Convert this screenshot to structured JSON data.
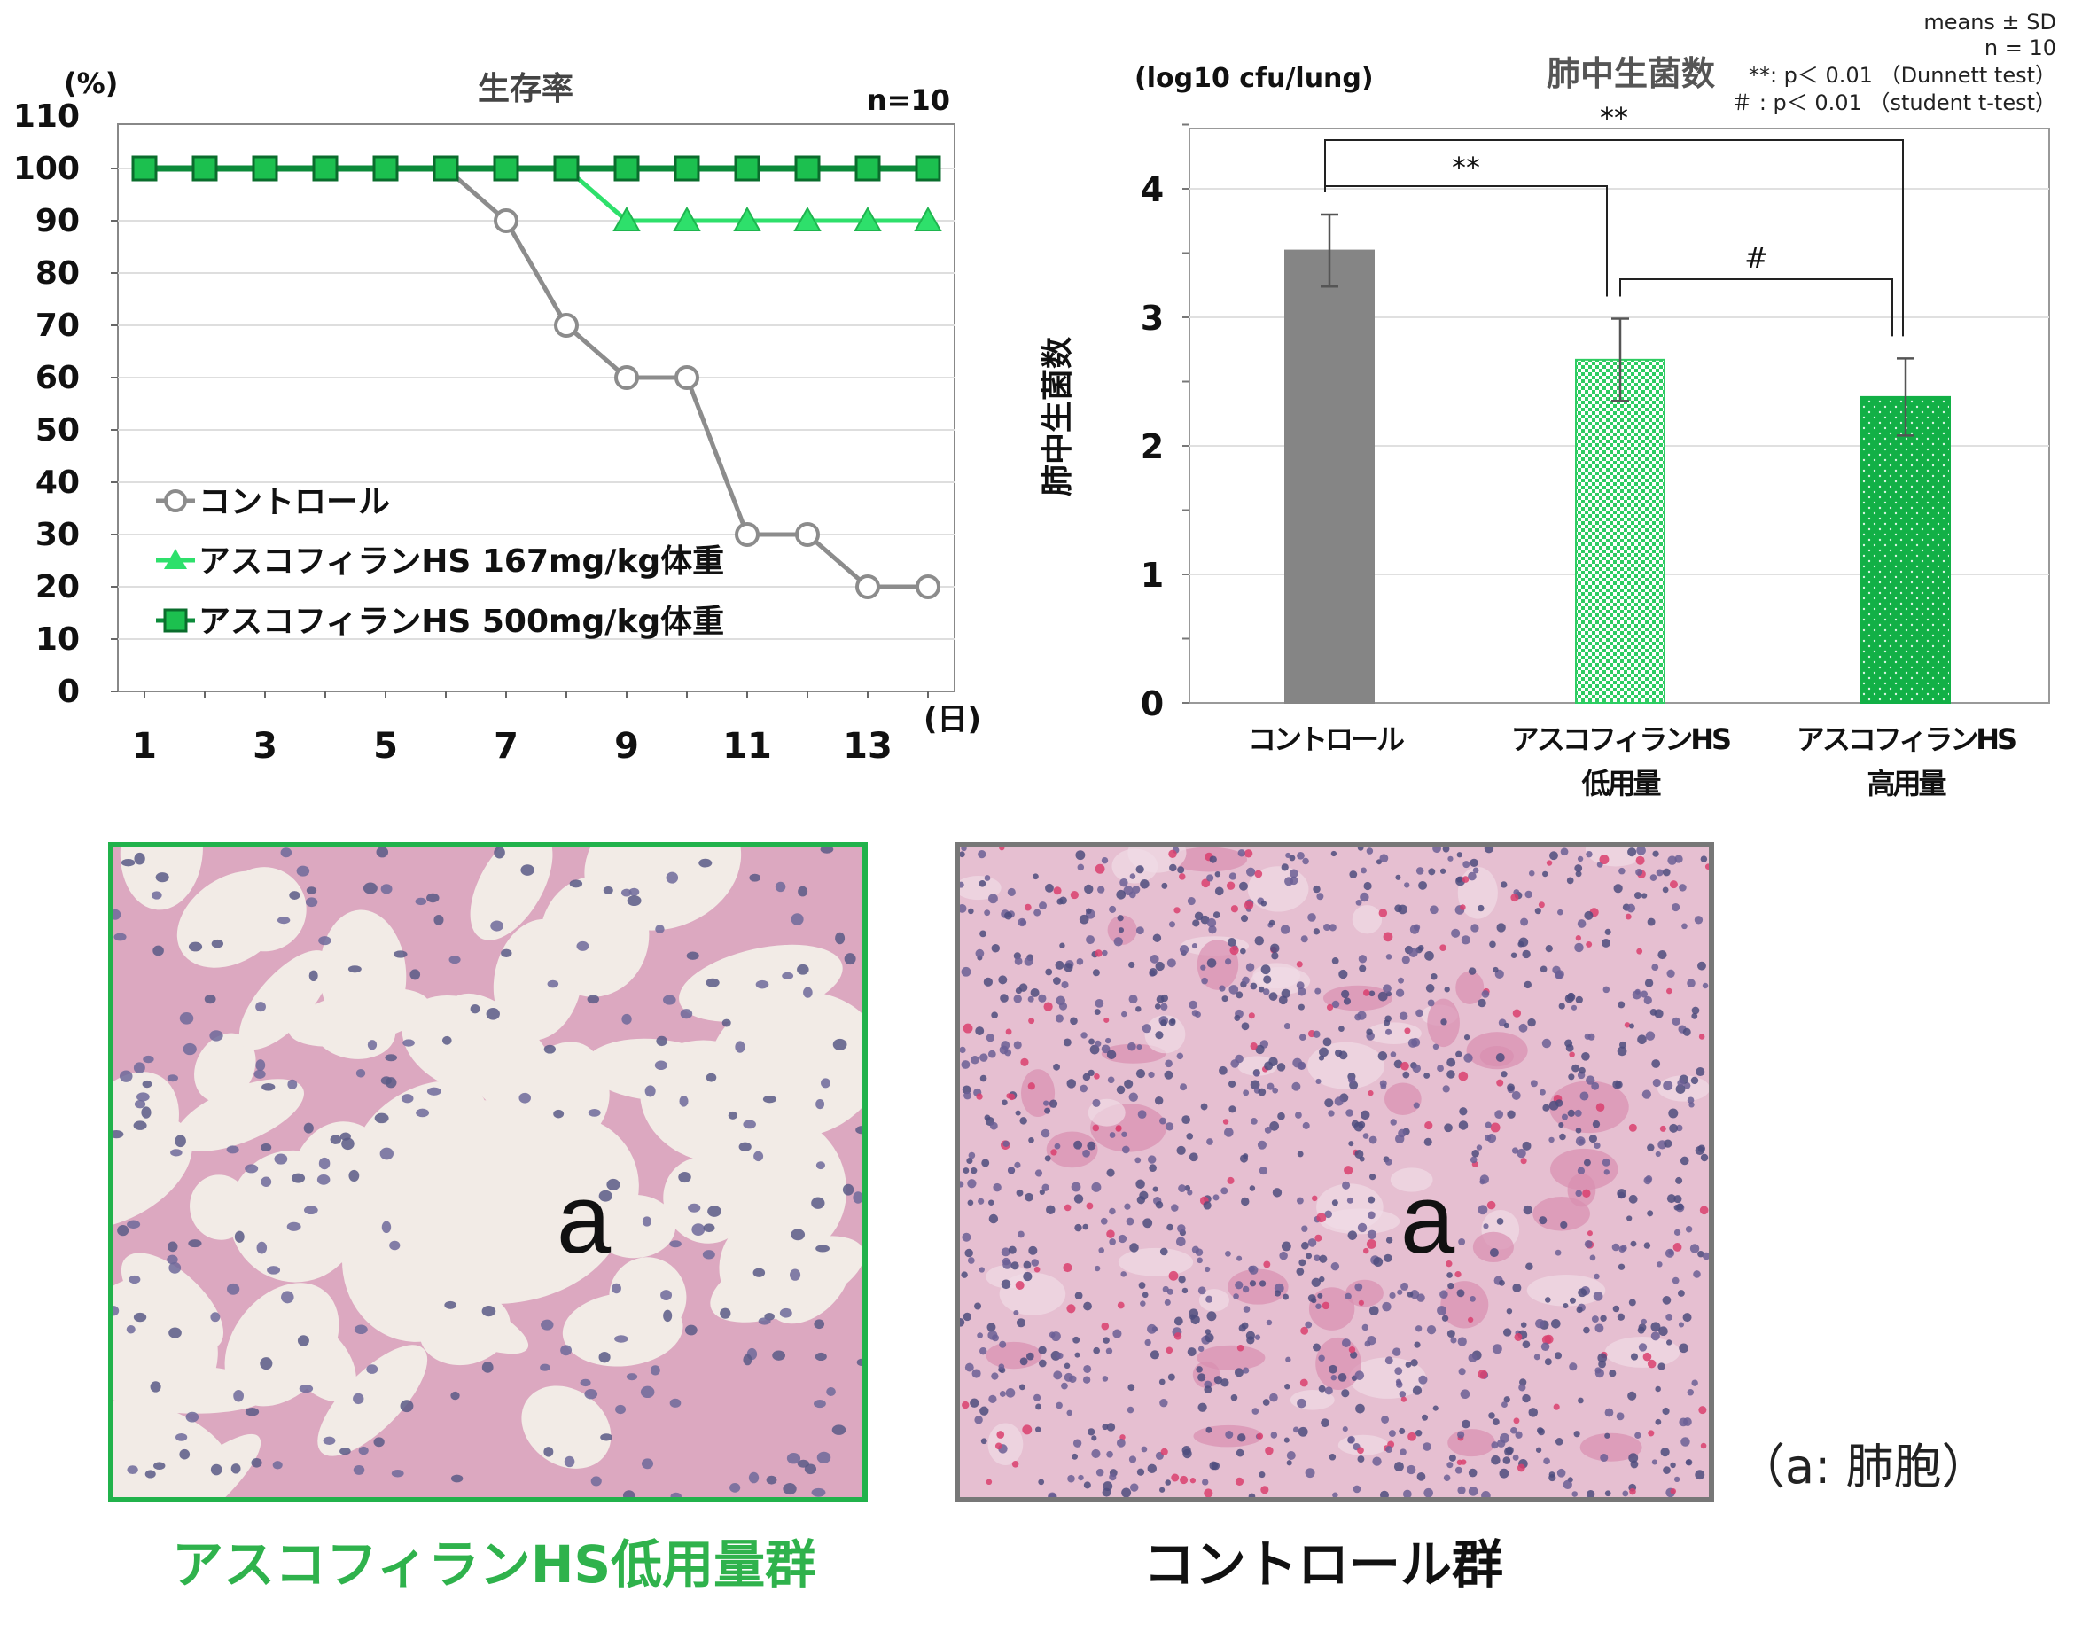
{
  "survival": {
    "title": "生存率",
    "unit": "(%)",
    "n_label": "n=10",
    "x_unit": "(日)",
    "chart_data": {
      "type": "line",
      "title": "生存率",
      "ylabel": "(%)",
      "xlabel": "(日)",
      "ylim": [
        0,
        110
      ],
      "xlim": [
        1,
        14
      ],
      "y_ticks": [
        "0",
        "10",
        "20",
        "30",
        "40",
        "50",
        "60",
        "70",
        "80",
        "90",
        "100",
        "110"
      ],
      "x_ticks": [
        "1",
        "3",
        "5",
        "7",
        "9",
        "11",
        "13"
      ],
      "x": [
        1,
        2,
        3,
        4,
        5,
        6,
        7,
        8,
        9,
        10,
        11,
        12,
        13,
        14
      ],
      "series": [
        {
          "name": "コントロール",
          "color": "#8c8c8c",
          "marker": "circle-open",
          "values": [
            null,
            null,
            null,
            null,
            null,
            null,
            90,
            70,
            60,
            60,
            30,
            30,
            20,
            20
          ],
          "start": [
            6,
            100
          ]
        },
        {
          "name": "アスコフィランHS 167mg/kg体重",
          "color": "#2ee06b",
          "marker": "triangle",
          "values": [
            null,
            null,
            null,
            null,
            null,
            null,
            null,
            null,
            90,
            90,
            90,
            90,
            90,
            90
          ],
          "start": [
            8,
            100
          ]
        },
        {
          "name": "アスコフィランHS 500mg/kg体重",
          "color": "#0c8a3a",
          "marker": "square",
          "values": [
            100,
            100,
            100,
            100,
            100,
            100,
            100,
            100,
            100,
            100,
            100,
            100,
            100,
            100
          ]
        }
      ],
      "legend": "left-middle",
      "grid": true
    }
  },
  "bacteria": {
    "title": "肺中生菌数",
    "unit": "(log10 cfu/lung)",
    "ylabel": "肺中生菌数",
    "notes": [
      "means ± SD",
      "n = 10",
      "**: p＜ 0.01 （Dunnett test）",
      "＃ : p＜ 0.01 （student t-test）"
    ],
    "chart_data": {
      "type": "bar",
      "title": "肺中生菌数",
      "ylabel": "肺中生菌数",
      "ylim": [
        0,
        4.5
      ],
      "y_ticks": [
        "0",
        "1",
        "2",
        "3",
        "4"
      ],
      "categories": [
        [
          "コントロール"
        ],
        [
          "アスコフィランHS",
          "低用量"
        ],
        [
          "アスコフィランHS",
          "高用量"
        ]
      ],
      "values": [
        3.52,
        2.67,
        2.38
      ],
      "errors": [
        0.28,
        0.32,
        0.3
      ],
      "colors": [
        "#858585",
        "#2ecc62",
        "#12b046"
      ],
      "patterns": [
        "solid",
        "checker",
        "dots"
      ],
      "significance": [
        {
          "from": 0,
          "to": 2,
          "label": "**"
        },
        {
          "from": 0,
          "to": 1,
          "label": "**"
        },
        {
          "from": 1,
          "to": 2,
          "label": "#"
        }
      ],
      "grid": true
    }
  },
  "histology": {
    "left_caption": "アスコフィランHS低用量群",
    "right_caption": "コントロール群",
    "left_marker": "a",
    "right_marker": "a",
    "legend_note": "（a: 肺胞）",
    "left_border_color": "#21b24b",
    "right_border_color": "#777777",
    "left_caption_color": "#2fb24c",
    "right_caption_color": "#111111"
  }
}
